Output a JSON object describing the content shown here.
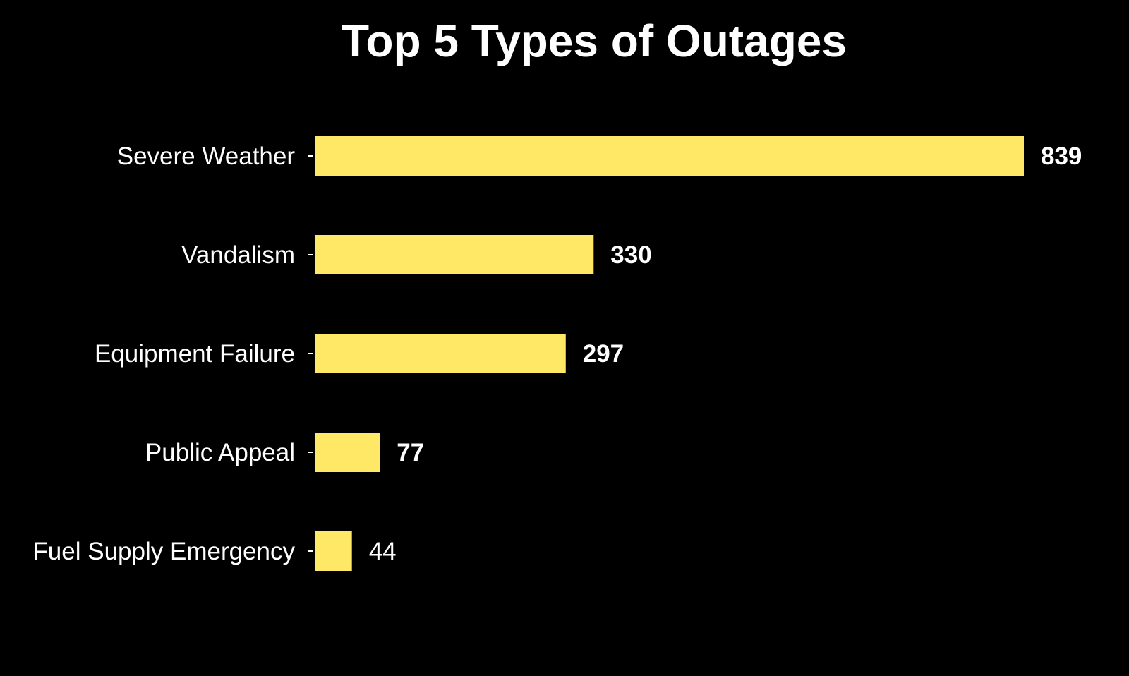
{
  "chart_data": {
    "type": "bar",
    "orientation": "horizontal",
    "title": "Top 5 Types of Outages",
    "xlabel": "",
    "ylabel": "",
    "categories": [
      "Severe Weather",
      "Vandalism",
      "Equipment Failure",
      "Public Appeal",
      "Fuel Supply Emergency"
    ],
    "values": [
      839,
      330,
      297,
      77,
      44
    ],
    "value_labels": [
      "839",
      "330",
      "297",
      "77",
      "44"
    ],
    "value_label_bold": [
      true,
      true,
      true,
      true,
      false
    ],
    "xlim": [
      0,
      839
    ],
    "grid": false,
    "legend": "none",
    "colors": {
      "background": "#000000",
      "bar": "#FFE866",
      "text": "#ffffff"
    }
  }
}
